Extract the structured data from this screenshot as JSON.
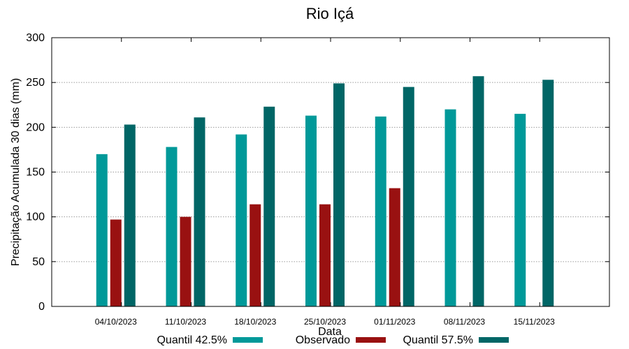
{
  "chart_data": {
    "type": "bar",
    "title": "Rio Içá",
    "xlabel": "Data",
    "ylabel": "Precipitação Acumulada 30 dias (mm)",
    "ylim": [
      0,
      300
    ],
    "yticks": [
      0,
      50,
      100,
      150,
      200,
      250,
      300
    ],
    "grid": true,
    "legend": "bottom",
    "categories": [
      "04/10/2023",
      "11/10/2023",
      "18/10/2023",
      "25/10/2023",
      "01/11/2023",
      "08/11/2023",
      "15/11/2023"
    ],
    "series": [
      {
        "name": "Quantil 42.5%",
        "color": "#009999",
        "values": [
          170,
          178,
          192,
          213,
          212,
          220,
          215
        ]
      },
      {
        "name": "Observado",
        "color": "#991111",
        "values": [
          97,
          100,
          114,
          114,
          132,
          null,
          null
        ]
      },
      {
        "name": "Quantil 57.5%",
        "color": "#006666",
        "values": [
          203,
          211,
          223,
          249,
          245,
          257,
          253
        ]
      }
    ]
  }
}
